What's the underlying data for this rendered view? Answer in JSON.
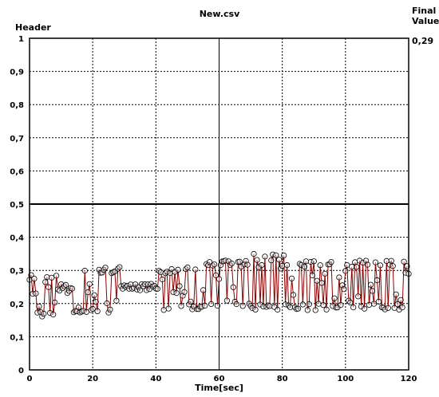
{
  "chart_data": {
    "type": "scatter",
    "title": "New.csv",
    "ylabel": "Header",
    "xlabel": "Time[sec]",
    "final_value_label": [
      "Final",
      "Value"
    ],
    "final_value": "0,29",
    "xlim": [
      0,
      120
    ],
    "ylim": [
      0,
      1
    ],
    "x_ticks": [
      0,
      20,
      40,
      60,
      80,
      100,
      120
    ],
    "x_tick_labels": [
      "0",
      "20",
      "40",
      "60",
      "80",
      "100",
      "120"
    ],
    "y_ticks": [
      0,
      0.1,
      0.2,
      0.3,
      0.4,
      0.5,
      0.6,
      0.7,
      0.8,
      0.9,
      1
    ],
    "y_tick_labels": [
      "0",
      "0,1",
      "0,2",
      "0,3",
      "0,4",
      "0,5",
      "0,6",
      "0,7",
      "0,8",
      "0,9",
      "1"
    ],
    "reference_line": 0.5,
    "grid": true,
    "colors": {
      "line": "#8b0000",
      "marker": "#000000",
      "grid": "#000000"
    },
    "series": [
      {
        "segments": [
          {
            "t_start": 0,
            "t_end": 9,
            "low": 0.16,
            "high": 0.29,
            "center": 0.24
          },
          {
            "t_start": 9,
            "t_end": 14,
            "low": 0.23,
            "high": 0.26,
            "center": 0.245
          },
          {
            "t_start": 14,
            "t_end": 29,
            "low": 0.17,
            "high": 0.31,
            "center": 0.245
          },
          {
            "t_start": 29,
            "t_end": 41,
            "low": 0.24,
            "high": 0.26,
            "center": 0.25
          },
          {
            "t_start": 41,
            "t_end": 55,
            "low": 0.18,
            "high": 0.31,
            "center": 0.245
          },
          {
            "t_start": 55,
            "t_end": 70,
            "low": 0.19,
            "high": 0.33,
            "center": 0.26
          },
          {
            "t_start": 70,
            "t_end": 86,
            "low": 0.18,
            "high": 0.35,
            "center": 0.26
          },
          {
            "t_start": 86,
            "t_end": 120,
            "low": 0.18,
            "high": 0.33,
            "center": 0.255
          }
        ],
        "final_value": 0.29
      }
    ]
  }
}
